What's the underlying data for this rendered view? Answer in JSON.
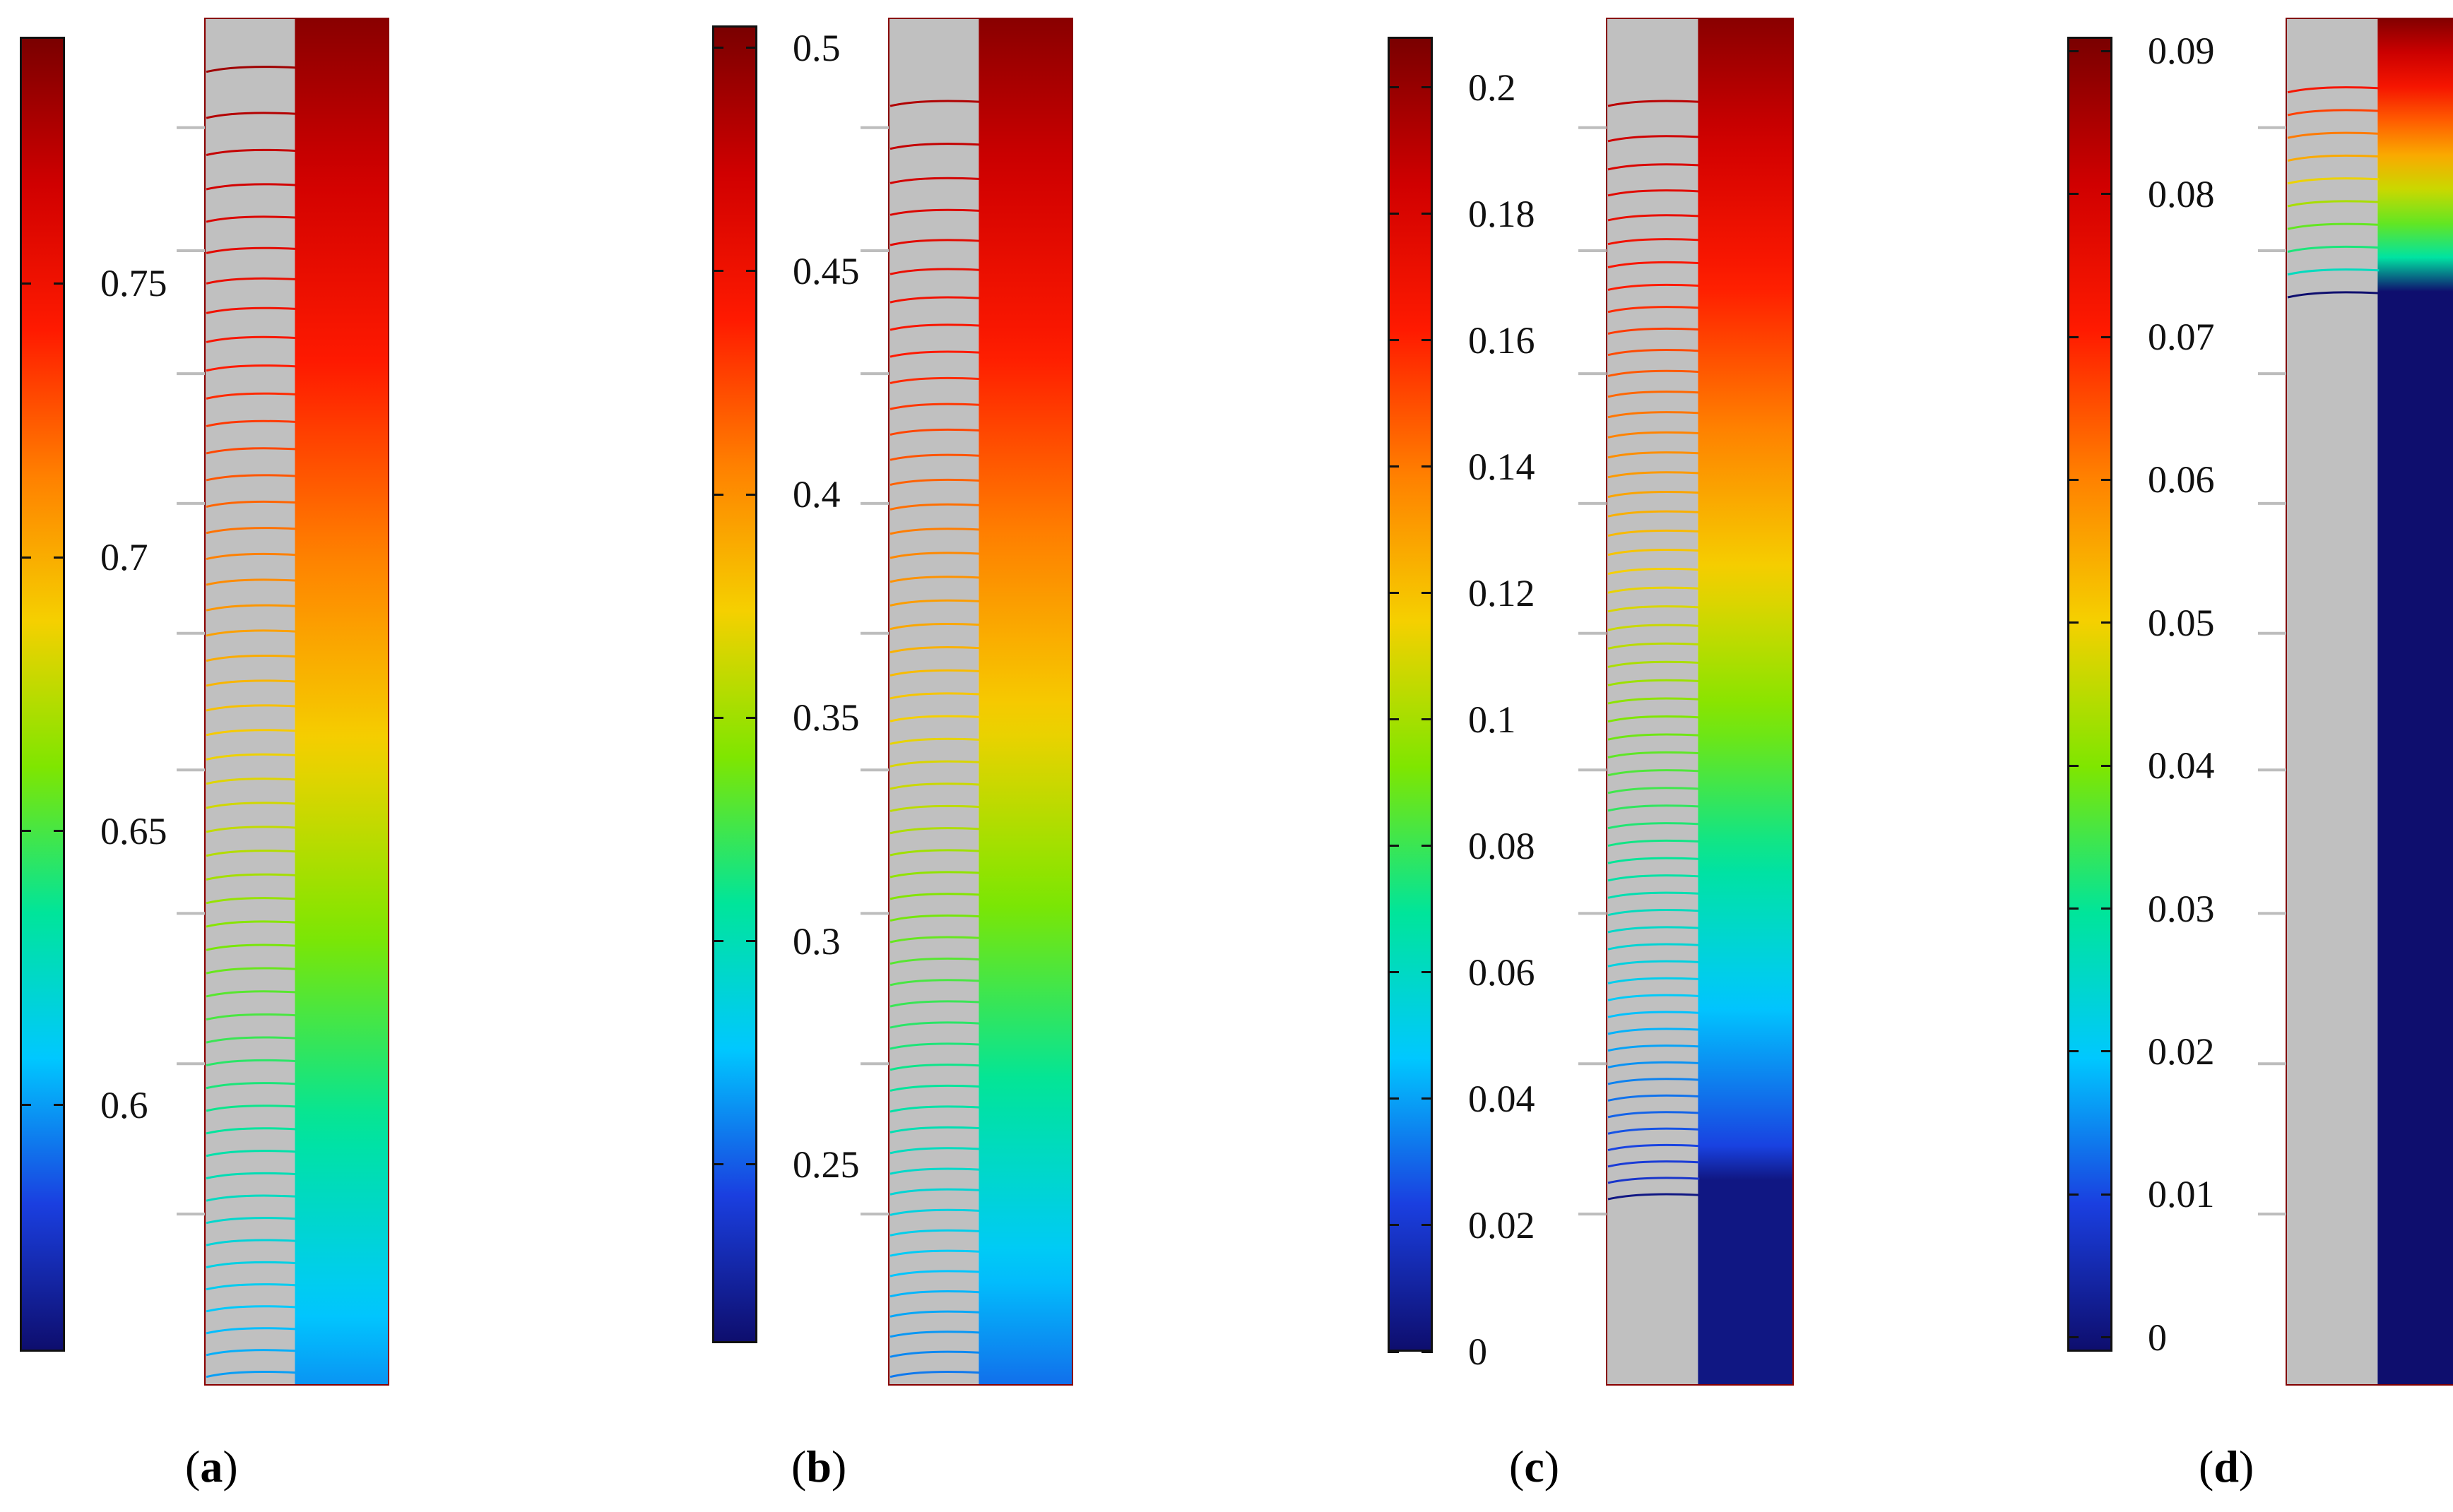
{
  "panels": [
    {
      "caption_open": "(",
      "caption_letter": "a",
      "caption_close": ")",
      "colorbar_ticks": [
        {
          "value": 0.6,
          "label": "0.6"
        },
        {
          "value": 0.65,
          "label": "0.65"
        },
        {
          "value": 0.7,
          "label": "0.7"
        },
        {
          "value": 0.75,
          "label": "0.75"
        }
      ],
      "colorbar_range": [
        0.555,
        0.795
      ]
    },
    {
      "caption_open": "(",
      "caption_letter": "b",
      "caption_close": ")",
      "colorbar_ticks": [
        {
          "value": 0.25,
          "label": "0.25"
        },
        {
          "value": 0.3,
          "label": "0.3"
        },
        {
          "value": 0.35,
          "label": "0.35"
        },
        {
          "value": 0.4,
          "label": "0.4"
        },
        {
          "value": 0.45,
          "label": "0.45"
        },
        {
          "value": 0.5,
          "label": "0.5"
        }
      ],
      "colorbar_range": [
        0.21,
        0.505
      ]
    },
    {
      "caption_open": "(",
      "caption_letter": "c",
      "caption_close": ")",
      "colorbar_ticks": [
        {
          "value": 0,
          "label": "0"
        },
        {
          "value": 0.02,
          "label": "0.02"
        },
        {
          "value": 0.04,
          "label": "0.04"
        },
        {
          "value": 0.06,
          "label": "0.06"
        },
        {
          "value": 0.08,
          "label": "0.08"
        },
        {
          "value": 0.1,
          "label": "0.1"
        },
        {
          "value": 0.12,
          "label": "0.12"
        },
        {
          "value": 0.14,
          "label": "0.14"
        },
        {
          "value": 0.16,
          "label": "0.16"
        },
        {
          "value": 0.18,
          "label": "0.18"
        },
        {
          "value": 0.2,
          "label": "0.2"
        }
      ],
      "colorbar_range": [
        0,
        0.208
      ]
    },
    {
      "caption_open": "(",
      "caption_letter": "d",
      "caption_close": ")",
      "colorbar_ticks": [
        {
          "value": 0,
          "label": "0"
        },
        {
          "value": 0.01,
          "label": "0.01"
        },
        {
          "value": 0.02,
          "label": "0.02"
        },
        {
          "value": 0.03,
          "label": "0.03"
        },
        {
          "value": 0.04,
          "label": "0.04"
        },
        {
          "value": 0.05,
          "label": "0.05"
        },
        {
          "value": 0.06,
          "label": "0.06"
        },
        {
          "value": 0.07,
          "label": "0.07"
        },
        {
          "value": 0.08,
          "label": "0.08"
        },
        {
          "value": 0.09,
          "label": "0.09"
        }
      ],
      "colorbar_range": [
        -0.001,
        0.091
      ]
    }
  ],
  "colors": {
    "colormap": [
      "#0e0e6e",
      "#1a3fe0",
      "#00c8ff",
      "#00e59a",
      "#7fe600",
      "#f5d000",
      "#ff8000",
      "#ff1a00",
      "#d00000",
      "#7a0000"
    ],
    "solid_gray": "#c0c0c0",
    "frame": "#111111"
  }
}
